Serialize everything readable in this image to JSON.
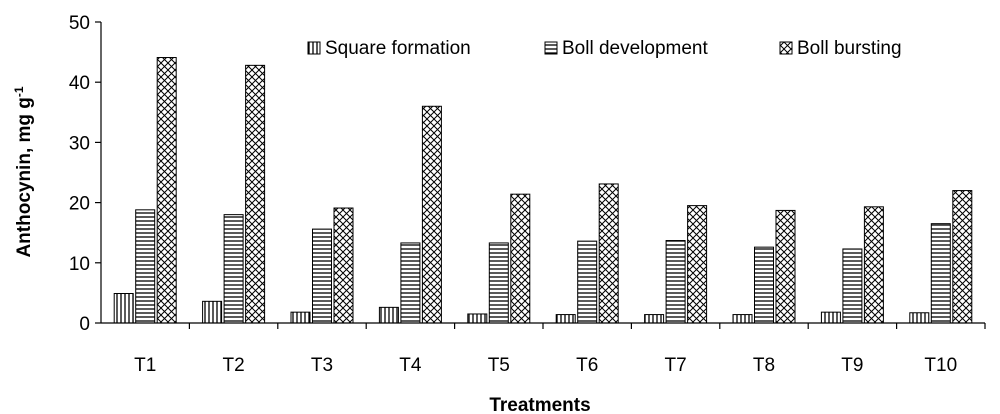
{
  "chart_data": {
    "type": "bar",
    "title": "",
    "xlabel": "Treatments",
    "ylabel": "Anthocynin, mg g",
    "ylabel_superscript": "-1",
    "ylim": [
      0,
      50
    ],
    "yticks": [
      0,
      10,
      20,
      30,
      40,
      50
    ],
    "grid": false,
    "legend_position": "top-right",
    "categories": [
      "T1",
      "T2",
      "T3",
      "T4",
      "T5",
      "T6",
      "T7",
      "T8",
      "T9",
      "T10"
    ],
    "series": [
      {
        "name": "Square formation",
        "pattern": "vertical-lines",
        "values": [
          4.9,
          3.6,
          1.8,
          2.6,
          1.5,
          1.4,
          1.4,
          1.4,
          1.8,
          1.7
        ]
      },
      {
        "name": "Boll development",
        "pattern": "horizontal-lines",
        "values": [
          18.8,
          18.0,
          15.6,
          13.3,
          13.3,
          13.6,
          13.7,
          12.6,
          12.3,
          16.5
        ]
      },
      {
        "name": "Boll bursting",
        "pattern": "cross-hatch",
        "values": [
          44.1,
          42.8,
          19.1,
          36.0,
          21.4,
          23.1,
          19.5,
          18.7,
          19.3,
          22.0
        ]
      }
    ]
  }
}
